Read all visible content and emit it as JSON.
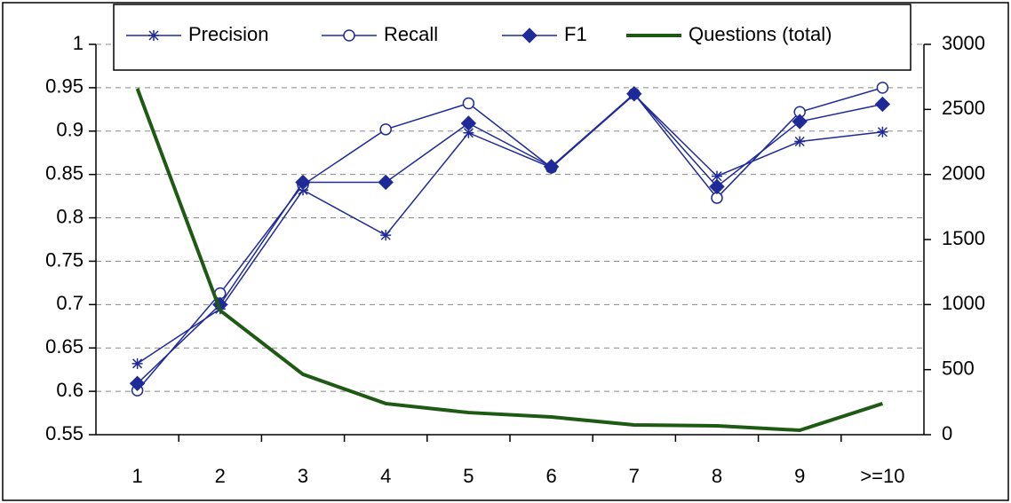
{
  "chart_data": {
    "type": "line",
    "categories": [
      "1",
      "2",
      "3",
      "4",
      "5",
      "6",
      "7",
      "8",
      "9",
      ">=10"
    ],
    "series": [
      {
        "name": "Precision",
        "color": "#1f2a99",
        "marker": "star",
        "values": [
          0.632,
          0.695,
          0.832,
          0.78,
          0.898,
          0.858,
          0.942,
          0.848,
          0.888,
          0.899
        ]
      },
      {
        "name": "Recall",
        "color": "#1f2a99",
        "marker": "circle",
        "values": [
          0.601,
          0.713,
          0.838,
          0.902,
          0.932,
          0.858,
          0.943,
          0.823,
          0.922,
          0.95
        ]
      },
      {
        "name": "F1",
        "color": "#1f2a99",
        "marker": "diamond",
        "values": [
          0.609,
          0.7,
          0.841,
          0.841,
          0.909,
          0.859,
          0.943,
          0.836,
          0.911,
          0.931
        ]
      },
      {
        "name": "Questions (total)",
        "color": "#1e5a14",
        "axis": "y2",
        "values": [
          2660,
          955,
          464,
          239,
          170,
          136,
          75,
          68,
          34,
          239
        ]
      }
    ],
    "ylim": [
      0.55,
      1
    ],
    "yticks": [
      0.55,
      0.6,
      0.65,
      0.7,
      0.75,
      0.8,
      0.85,
      0.9,
      0.95,
      1
    ],
    "y2lim": [
      0,
      3000
    ],
    "y2ticks": [
      0,
      500,
      1000,
      1500,
      2000,
      2500,
      3000
    ],
    "grid": true,
    "legend": "top"
  }
}
